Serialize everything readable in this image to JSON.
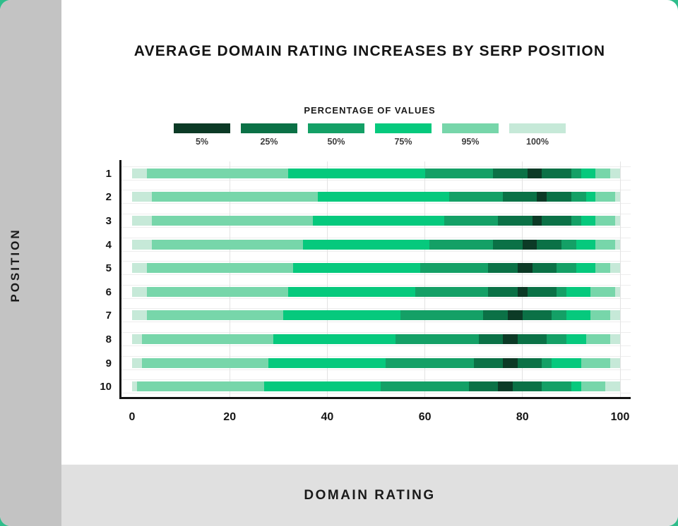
{
  "page": {
    "ylabel": "POSITION",
    "xlabel": "DOMAIN RATING",
    "colors": {
      "page_background_accent": "#2fbd8b",
      "left_strip": "#c3c3c3",
      "bottom_band": "#e0e0e0",
      "card_background": "#ffffff",
      "text": "#141414",
      "axis": "#141414",
      "gridline": "#e3e3e3"
    }
  },
  "chart_data": {
    "type": "bar",
    "variant": "horizontal-percentile-band-bars",
    "title": "AVERAGE DOMAIN RATING INCREASES BY SERP POSITION",
    "legend_title": "PERCENTAGE OF VALUES",
    "legend": [
      {
        "label": "5%",
        "color": "#0c3a26"
      },
      {
        "label": "25%",
        "color": "#0b7146"
      },
      {
        "label": "50%",
        "color": "#14a066"
      },
      {
        "label": "75%",
        "color": "#06c97d"
      },
      {
        "label": "95%",
        "color": "#77d6aa"
      },
      {
        "label": "100%",
        "color": "#c6e9d8"
      }
    ],
    "xlabel": "DOMAIN RATING",
    "ylabel": "POSITION",
    "xlim": [
      0,
      100
    ],
    "x_ticks": [
      0,
      20,
      40,
      60,
      80,
      100
    ],
    "grid": "vertical-major-plus-row-hairlines",
    "legend_position": "top-center",
    "segment_band_order": [
      "100%",
      "95%",
      "75%",
      "50%",
      "25%",
      "5%",
      "25%",
      "50%",
      "75%",
      "95%",
      "100%"
    ],
    "rows": [
      {
        "position": "1",
        "band_boundaries": [
          0,
          3,
          32,
          60,
          74,
          81,
          84,
          90,
          92,
          95,
          98,
          100
        ]
      },
      {
        "position": "2",
        "band_boundaries": [
          0,
          4,
          38,
          65,
          76,
          83,
          85,
          90,
          93,
          95,
          99,
          100
        ]
      },
      {
        "position": "3",
        "band_boundaries": [
          0,
          4,
          37,
          64,
          75,
          82,
          84,
          90,
          92,
          95,
          99,
          100
        ]
      },
      {
        "position": "4",
        "band_boundaries": [
          0,
          4,
          35,
          61,
          74,
          80,
          83,
          88,
          91,
          95,
          99,
          100
        ]
      },
      {
        "position": "5",
        "band_boundaries": [
          0,
          3,
          33,
          59,
          73,
          79,
          82,
          87,
          91,
          95,
          98,
          100
        ]
      },
      {
        "position": "6",
        "band_boundaries": [
          0,
          3,
          32,
          58,
          73,
          79,
          81,
          87,
          89,
          94,
          99,
          100
        ]
      },
      {
        "position": "7",
        "band_boundaries": [
          0,
          3,
          31,
          55,
          72,
          77,
          80,
          86,
          89,
          94,
          98,
          100
        ]
      },
      {
        "position": "8",
        "band_boundaries": [
          0,
          2,
          29,
          54,
          71,
          76,
          79,
          85,
          89,
          93,
          98,
          100
        ]
      },
      {
        "position": "9",
        "band_boundaries": [
          0,
          2,
          28,
          52,
          70,
          76,
          79,
          84,
          86,
          92,
          98,
          100
        ]
      },
      {
        "position": "10",
        "band_boundaries": [
          0,
          1,
          27,
          51,
          69,
          75,
          78,
          84,
          90,
          92,
          97,
          100
        ]
      }
    ]
  }
}
